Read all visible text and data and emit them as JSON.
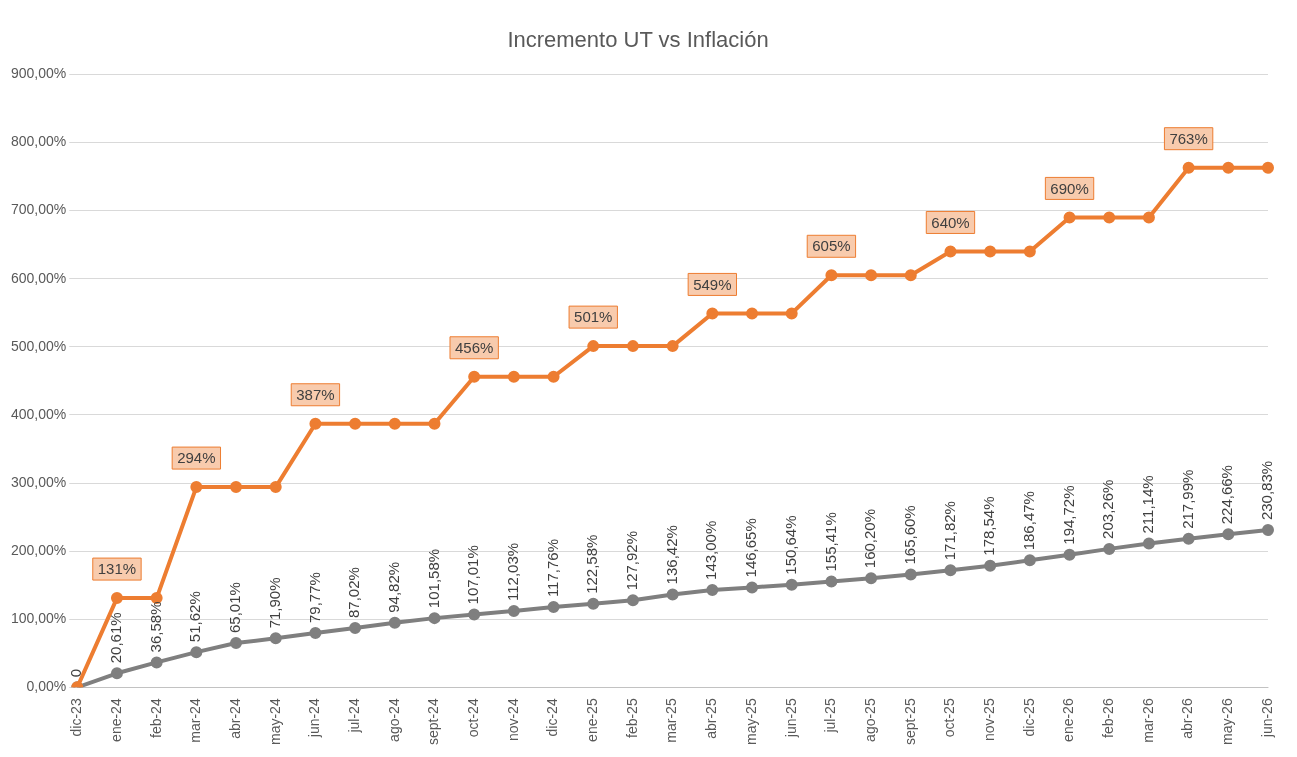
{
  "chart_data": {
    "type": "line",
    "title": "Incremento UT vs Inflación",
    "categories": [
      "dic-23",
      "ene-24",
      "feb-24",
      "mar-24",
      "abr-24",
      "may-24",
      "jun-24",
      "jul-24",
      "ago-24",
      "sept-24",
      "oct-24",
      "nov-24",
      "dic-24",
      "ene-25",
      "feb-25",
      "mar-25",
      "abr-25",
      "may-25",
      "jun-25",
      "jul-25",
      "ago-25",
      "sept-25",
      "oct-25",
      "nov-25",
      "dic-25",
      "ene-26",
      "feb-26",
      "mar-26",
      "abr-26",
      "may-26",
      "jun-26"
    ],
    "series": [
      {
        "color": "#ed7d31",
        "values": [
          0,
          131,
          131,
          294,
          294,
          294,
          387,
          387,
          387,
          387,
          456,
          456,
          456,
          501,
          501,
          501,
          549,
          549,
          549,
          605,
          605,
          605,
          640,
          640,
          640,
          690,
          690,
          690,
          763,
          763,
          763
        ],
        "value_labels": [
          null,
          "131%",
          null,
          "294%",
          null,
          null,
          "387%",
          null,
          null,
          null,
          "456%",
          null,
          null,
          "501%",
          null,
          null,
          "549%",
          null,
          null,
          "605%",
          null,
          null,
          "640%",
          null,
          null,
          "690%",
          null,
          null,
          "763%",
          null,
          null
        ]
      },
      {
        "color": "#7f7f7f",
        "values": [
          0,
          20.61,
          36.58,
          51.62,
          65.01,
          71.9,
          79.77,
          87.02,
          94.82,
          101.58,
          107.01,
          112.03,
          117.76,
          122.58,
          127.92,
          136.42,
          143.0,
          146.65,
          150.64,
          155.41,
          160.2,
          165.6,
          171.82,
          178.54,
          186.47,
          194.72,
          203.26,
          211.14,
          217.99,
          224.66,
          230.83
        ],
        "value_labels": [
          "0",
          "20,61%",
          "36,58%",
          "51,62%",
          "65,01%",
          "71,90%",
          "79,77%",
          "87,02%",
          "94,82%",
          "101,58%",
          "107,01%",
          "112,03%",
          "117,76%",
          "122,58%",
          "127,92%",
          "136,42%",
          "143,00%",
          "146,65%",
          "150,64%",
          "155,41%",
          "160,20%",
          "165,60%",
          "171,82%",
          "178,54%",
          "186,47%",
          "194,72%",
          "203,26%",
          "211,14%",
          "217,99%",
          "224,66%",
          "230,83%"
        ]
      }
    ],
    "ylim": [
      0,
      900
    ],
    "yticks": [
      {
        "value": 0,
        "label": "0,00%"
      },
      {
        "value": 100,
        "label": "100,00%"
      },
      {
        "value": 200,
        "label": "200,00%"
      },
      {
        "value": 300,
        "label": "300,00%"
      },
      {
        "value": 400,
        "label": "400,00%"
      },
      {
        "value": 500,
        "label": "500,00%"
      },
      {
        "value": 600,
        "label": "600,00%"
      },
      {
        "value": 700,
        "label": "700,00%"
      },
      {
        "value": 800,
        "label": "800,00%"
      },
      {
        "value": 900,
        "label": "900,00%"
      }
    ],
    "grid": "y",
    "legend": false,
    "marker": "circle",
    "line_style": "solid"
  }
}
